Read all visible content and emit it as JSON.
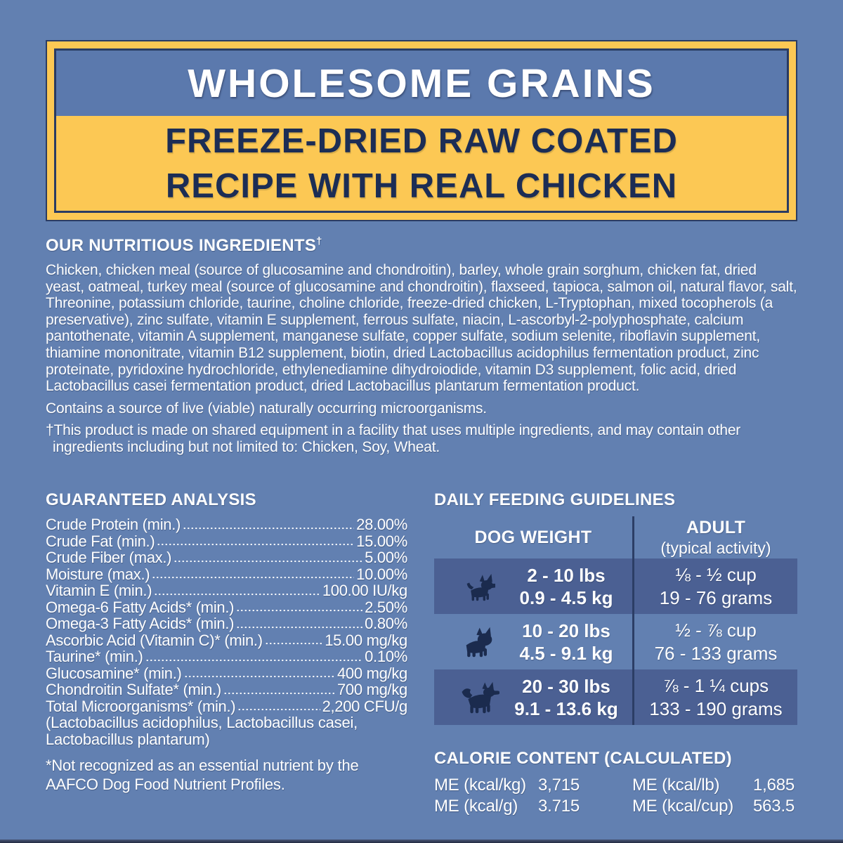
{
  "colors": {
    "background": "#6280b1",
    "accent_yellow": "#fcc854",
    "navy_text": "#1c2d55",
    "dark_row_blue": "#4b6093",
    "divider_navy": "#2c3e66",
    "text_white": "#ffffff"
  },
  "header": {
    "title": "WHOLESOME GRAINS",
    "subtitle_line1": "FREEZE-DRIED RAW COATED",
    "subtitle_line2": "RECIPE WITH REAL CHICKEN"
  },
  "ingredients": {
    "title": "OUR NUTRITIOUS INGREDIENTS",
    "title_dagger": "†",
    "list": "Chicken, chicken meal (source of glucosamine and chondroitin), barley, whole grain sorghum, chicken fat, dried yeast, oatmeal, turkey meal (source of glucosamine and chondroitin), flaxseed, tapioca, salmon oil, natural flavor, salt, Threonine, potassium chloride, taurine, choline chloride, freeze-dried chicken, L-Tryptophan, mixed tocopherols (a preservative), zinc sulfate, vitamin E supplement, ferrous sulfate, niacin, L-ascorbyl-2-polyphosphate, calcium pantothenate, vitamin A supplement, manganese sulfate, copper sulfate, sodium selenite, riboflavin supplement, thiamine mononitrate, vitamin B12 supplement, biotin, dried Lactobacillus acidophilus fermentation product, zinc proteinate, pyridoxine hydrochloride, ethylenediamine dihydroiodide, vitamin D3 supplement, folic acid, dried Lactobacillus casei fermentation product, dried Lactobacillus plantarum fermentation product.",
    "contains_note": "Contains a source of live (viable) naturally occurring microorganisms.",
    "shared_equipment_note": "†This product is made on shared equipment in a facility that uses multiple ingredients, and may contain other ingredients including but not limited to: Chicken, Soy, Wheat."
  },
  "guaranteed_analysis": {
    "title": "GUARANTEED ANALYSIS",
    "rows": [
      {
        "label": "Crude Protein (min.)",
        "value": "28.00%"
      },
      {
        "label": "Crude Fat (min.)",
        "value": "15.00%"
      },
      {
        "label": "Crude Fiber (max.)",
        "value": "5.00%"
      },
      {
        "label": "Moisture (max.)",
        "value": "10.00%"
      },
      {
        "label": "Vitamin E (min.)",
        "value": "100.00 IU/kg"
      },
      {
        "label": "Omega-6 Fatty Acids* (min.)",
        "value": "2.50%"
      },
      {
        "label": "Omega-3 Fatty Acids* (min.)",
        "value": "0.80%"
      },
      {
        "label": "Ascorbic Acid (Vitamin C)* (min.)",
        "value": "15.00 mg/kg"
      },
      {
        "label": "Taurine* (min.)",
        "value": "0.10%"
      },
      {
        "label": "Glucosamine* (min.)",
        "value": "400 mg/kg"
      },
      {
        "label": "Chondroitin Sulfate* (min.)",
        "value": "700 mg/kg"
      },
      {
        "label": "Total Microorganisms* (min.)",
        "value": "2,200 CFU/g"
      }
    ],
    "microorganism_species": "(Lactobacillus acidophilus, Lactobacillus casei, Lactobacillus plantarum)",
    "footnote": "*Not recognized as an essential nutrient by the AAFCO Dog Food Nutrient Profiles."
  },
  "feeding_guidelines": {
    "title": "DAILY FEEDING GUIDELINES",
    "column_weight": "DOG WEIGHT",
    "column_adult": "ADULT",
    "column_adult_sub": "(typical activity)",
    "rows": [
      {
        "icon": "chihuahua-icon",
        "weight_lbs": "2 - 10 lbs",
        "weight_kg": "0.9 - 4.5 kg",
        "amount_cups": "⅛ - ½ cup",
        "amount_grams": "19 - 76 grams"
      },
      {
        "icon": "french-bulldog-icon",
        "weight_lbs": "10 - 20 lbs",
        "weight_kg": "4.5 - 9.1 kg",
        "amount_cups": "½ - ⅞ cup",
        "amount_grams": "76 - 133 grams"
      },
      {
        "icon": "fluffy-dog-icon",
        "weight_lbs": "20 - 30 lbs",
        "weight_kg": "9.1 - 13.6 kg",
        "amount_cups": "⅞ - 1 ¼ cups",
        "amount_grams": "133 - 190 grams"
      }
    ]
  },
  "calorie_content": {
    "title": "CALORIE CONTENT (CALCULATED)",
    "left": [
      {
        "label": "ME (kcal/kg)",
        "value": "3,715"
      },
      {
        "label": "ME (kcal/g)",
        "value": "3.715"
      }
    ],
    "right": [
      {
        "label": "ME (kcal/lb)",
        "value": "1,685"
      },
      {
        "label": "ME (kcal/cup)",
        "value": "563.5"
      }
    ]
  }
}
